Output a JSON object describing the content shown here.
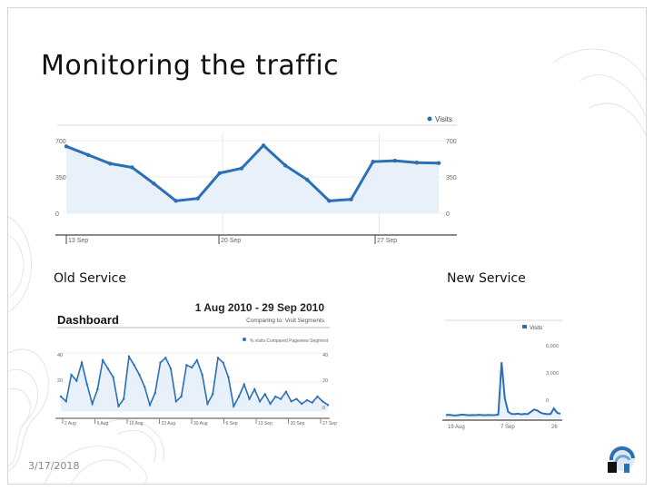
{
  "slide": {
    "title": "Monitoring the traffic",
    "label_old": "Old Service",
    "label_new": "New Service",
    "date": "3/17/2018"
  },
  "colors": {
    "line": "#2b6fb6",
    "fill": "#e8f0fa",
    "grid": "#d9d9d9",
    "axis": "#666666",
    "red": "#e0312f"
  },
  "charts": {
    "top": {
      "legend": "Visits",
      "y_left": [
        "700",
        "350",
        "0"
      ],
      "y_right": [
        "700",
        "350",
        "0"
      ],
      "x_ticks": [
        "13 Sep",
        "20 Sep",
        "27 Sep"
      ],
      "values": [
        700,
        610,
        520,
        480,
        310,
        130,
        155,
        420,
        470,
        710,
        500,
        350,
        130,
        145,
        540,
        550,
        530,
        525
      ]
    },
    "old": {
      "heading": "Dashboard",
      "date_range": "1 Aug 2010 - 29 Sep 2010",
      "comparing": "Comparing to: Visit Segments",
      "legend": "% visits  Compared Pageview Segment",
      "y_left": [
        "40",
        "20"
      ],
      "y_right": [
        "40",
        "20",
        "0"
      ],
      "x_ticks": [
        "2 Aug",
        "9 Aug",
        "16 Aug",
        "23 Aug",
        "30 Aug",
        "6 Sep",
        "13 Sep",
        "20 Sep",
        "27 Sep"
      ],
      "values": [
        12,
        8,
        30,
        25,
        40,
        22,
        6,
        18,
        42,
        35,
        28,
        4,
        10,
        45,
        38,
        30,
        20,
        5,
        15,
        40,
        44,
        35,
        8,
        12,
        38,
        36,
        42,
        30,
        6,
        14,
        44,
        40,
        28,
        4,
        12,
        22,
        10,
        18,
        8,
        14,
        6,
        12,
        10,
        16,
        8,
        10,
        6,
        9,
        7,
        12,
        8,
        5
      ]
    },
    "new": {
      "legend": "Visits",
      "y_right": [
        "6,000",
        "3,000",
        "0"
      ],
      "x_ticks": [
        "19 Aug",
        "7 Sep",
        "26"
      ],
      "values": [
        300,
        320,
        280,
        260,
        300,
        340,
        310,
        280,
        300,
        290,
        320,
        300,
        280,
        310,
        290,
        300,
        340,
        5100,
        1800,
        600,
        400,
        380,
        420,
        360,
        400,
        380,
        600,
        800,
        700,
        500,
        420,
        380,
        400,
        900,
        500,
        420
      ]
    }
  }
}
